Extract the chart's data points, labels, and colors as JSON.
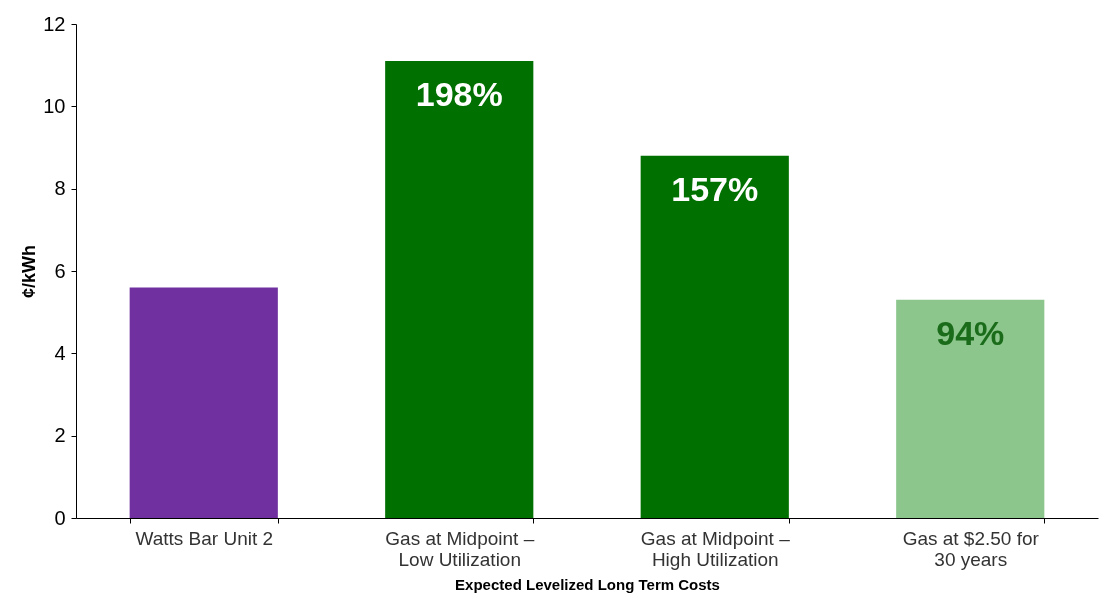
{
  "chart_data": {
    "type": "bar",
    "xlabel": "Expected Levelized Long Term Costs",
    "ylabel": "¢/kWh",
    "categories": [
      "Watts Bar Unit 2",
      "Gas at Midpoint – Low Utilization",
      "Gas at Midpoint – High Utilization",
      "Gas at $2.50 for 30 years"
    ],
    "values": [
      5.6,
      11.1,
      8.8,
      5.3
    ],
    "colors": [
      "#7030a0",
      "#007000",
      "#007000",
      "#8cc68c"
    ],
    "annotations": [
      {
        "text": "198%",
        "x": "Gas at Midpoint – Low Utilization",
        "y": 11.1
      },
      {
        "text": "157%",
        "x": "Gas at Midpoint – High Utilization",
        "y": 8.8
      },
      {
        "text": "94%",
        "x": "Gas at $2.50 for 30 years",
        "y": 5.3
      }
    ],
    "ylim": [
      0,
      12
    ],
    "yticks": [
      0,
      2,
      4,
      6,
      8,
      10,
      12
    ],
    "grid": false
  }
}
